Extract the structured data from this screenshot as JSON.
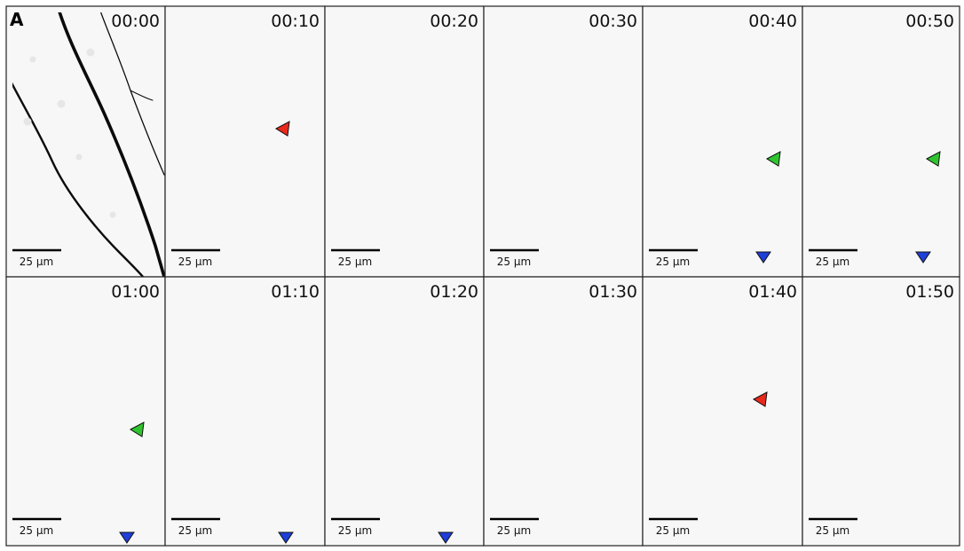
{
  "figure": {
    "panel_label": "A",
    "scale_bar_label": "25 µm",
    "frames": [
      {
        "time": "00:00",
        "markers": []
      },
      {
        "time": "00:10",
        "markers": [
          "red"
        ]
      },
      {
        "time": "00:20",
        "markers": []
      },
      {
        "time": "00:30",
        "markers": []
      },
      {
        "time": "00:40",
        "markers": [
          "green",
          "blue"
        ]
      },
      {
        "time": "00:50",
        "markers": [
          "green",
          "blue"
        ]
      },
      {
        "time": "01:00",
        "markers": [
          "green",
          "blue"
        ]
      },
      {
        "time": "01:10",
        "markers": [
          "blue"
        ]
      },
      {
        "time": "01:20",
        "markers": [
          "blue"
        ]
      },
      {
        "time": "01:30",
        "markers": []
      },
      {
        "time": "01:40",
        "markers": [
          "red"
        ]
      },
      {
        "time": "01:50",
        "markers": []
      }
    ],
    "marker_colors": {
      "red": "#e8291c",
      "green": "#2fc42f",
      "blue": "#1f3fd8"
    }
  }
}
